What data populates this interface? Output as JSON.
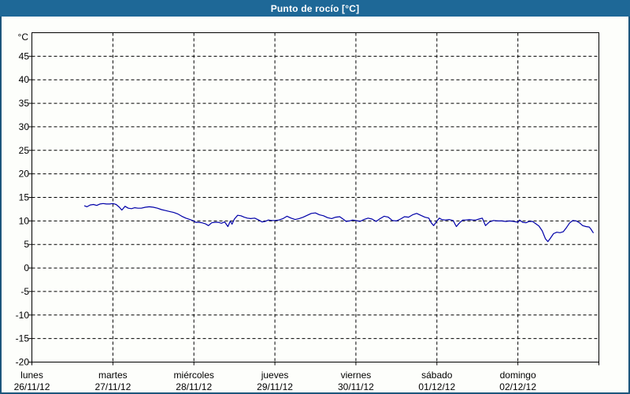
{
  "window": {
    "title": "Punto de rocío [°C]"
  },
  "colors": {
    "titlebar_bg": "#1e6897",
    "titlebar_text": "#ffffff",
    "window_border": "#1d567c",
    "plot_bg": "#fdfefb",
    "frame": "#000000",
    "grid": "#000000",
    "label_text": "#000000",
    "line": "#0000a8"
  },
  "chart_data": {
    "type": "line",
    "title": "Punto de rocío [°C]",
    "ylabel": "°C",
    "xlabel": "",
    "ylim": [
      -20,
      50
    ],
    "yticks": [
      45,
      40,
      35,
      30,
      25,
      20,
      15,
      10,
      5,
      0,
      -5,
      -10,
      -15,
      -20
    ],
    "grid": "dashed",
    "legend": "none",
    "x_axis": {
      "days": [
        {
          "name": "lunes",
          "date": "26/11/12"
        },
        {
          "name": "martes",
          "date": "27/11/12"
        },
        {
          "name": "miércoles",
          "date": "28/11/12"
        },
        {
          "name": "jueves",
          "date": "29/11/12"
        },
        {
          "name": "viernes",
          "date": "30/11/12"
        },
        {
          "name": "sábado",
          "date": "01/12/12"
        },
        {
          "name": "domingo",
          "date": "02/12/12"
        }
      ]
    },
    "series": [
      {
        "name": "Punto de rocío",
        "color": "#0000a8",
        "x_days": [
          0.65,
          0.68,
          0.72,
          0.76,
          0.8,
          0.84,
          0.88,
          0.92,
          0.96,
          1,
          1.04,
          1.08,
          1.11,
          1.15,
          1.19,
          1.23,
          1.27,
          1.31,
          1.35,
          1.4,
          1.45,
          1.5,
          1.55,
          1.6,
          1.65,
          1.7,
          1.75,
          1.8,
          1.85,
          1.9,
          1.95,
          2,
          2.02,
          2.06,
          2.1,
          2.14,
          2.18,
          2.22,
          2.26,
          2.3,
          2.34,
          2.38,
          2.42,
          2.45,
          2.47,
          2.5,
          2.54,
          2.58,
          2.62,
          2.66,
          2.7,
          2.75,
          2.8,
          2.84,
          2.88,
          2.92,
          2.96,
          3,
          3.05,
          3.1,
          3.15,
          3.2,
          3.25,
          3.3,
          3.35,
          3.4,
          3.45,
          3.5,
          3.55,
          3.6,
          3.65,
          3.7,
          3.75,
          3.8,
          3.85,
          3.88,
          3.92,
          3.96,
          4,
          4.05,
          4.1,
          4.15,
          4.2,
          4.25,
          4.3,
          4.35,
          4.4,
          4.45,
          4.5,
          4.55,
          4.6,
          4.65,
          4.7,
          4.75,
          4.8,
          4.85,
          4.9,
          4.93,
          4.96,
          5,
          5.03,
          5.06,
          5.1,
          5.15,
          5.2,
          5.24,
          5.28,
          5.32,
          5.36,
          5.4,
          5.44,
          5.48,
          5.52,
          5.56,
          5.6,
          5.65,
          5.7,
          5.75,
          5.8,
          5.85,
          5.9,
          5.95,
          6,
          6.02,
          6.06,
          6.1,
          6.14,
          6.18,
          6.22,
          6.26,
          6.3,
          6.34,
          6.37,
          6.4,
          6.44,
          6.48,
          6.52,
          6.56,
          6.6,
          6.64,
          6.68,
          6.72,
          6.76,
          6.8,
          6.84,
          6.88,
          6.9,
          6.93
        ],
        "values": [
          13.2,
          13,
          13.4,
          13.5,
          13.3,
          13.6,
          13.7,
          13.6,
          13.6,
          13.7,
          13.5,
          12.9,
          12.3,
          13.1,
          12.7,
          12.6,
          12.8,
          12.7,
          12.7,
          12.9,
          13,
          12.9,
          12.7,
          12.4,
          12.2,
          12,
          11.8,
          11.5,
          11,
          10.6,
          10.3,
          10,
          9.7,
          9.7,
          9.6,
          9.4,
          9,
          9.6,
          9.7,
          9.7,
          9.5,
          9.8,
          8.8,
          10,
          9.3,
          10.4,
          11.2,
          11.1,
          10.8,
          10.6,
          10.5,
          10.6,
          10.2,
          9.8,
          9.9,
          10.2,
          10.1,
          10.1,
          10.2,
          10.5,
          11,
          10.6,
          10.3,
          10.5,
          10.8,
          11.2,
          11.6,
          11.7,
          11.3,
          11.1,
          10.7,
          10.5,
          10.8,
          10.9,
          10.3,
          9.9,
          10,
          10.2,
          10.1,
          9.9,
          10.3,
          10.6,
          10.4,
          9.9,
          10.5,
          11,
          10.8,
          10.1,
          10,
          10.4,
          10.9,
          10.8,
          11.3,
          11.6,
          11.2,
          10.8,
          10.6,
          9.6,
          9,
          10,
          10.6,
          10.3,
          10.2,
          10.3,
          10.1,
          8.8,
          9.6,
          10.2,
          10.2,
          10.3,
          10.2,
          10.2,
          10.4,
          10.6,
          9,
          9.8,
          10.1,
          10,
          10,
          9.9,
          10,
          9.9,
          9.7,
          10.2,
          9.7,
          9.6,
          9.9,
          9.9,
          9.4,
          8.9,
          7.9,
          6.2,
          5.6,
          6.3,
          7.3,
          7.6,
          7.5,
          7.7,
          8.6,
          9.6,
          10.1,
          10,
          9.6,
          9,
          8.8,
          8.7,
          8.3,
          7.5
        ]
      }
    ]
  }
}
